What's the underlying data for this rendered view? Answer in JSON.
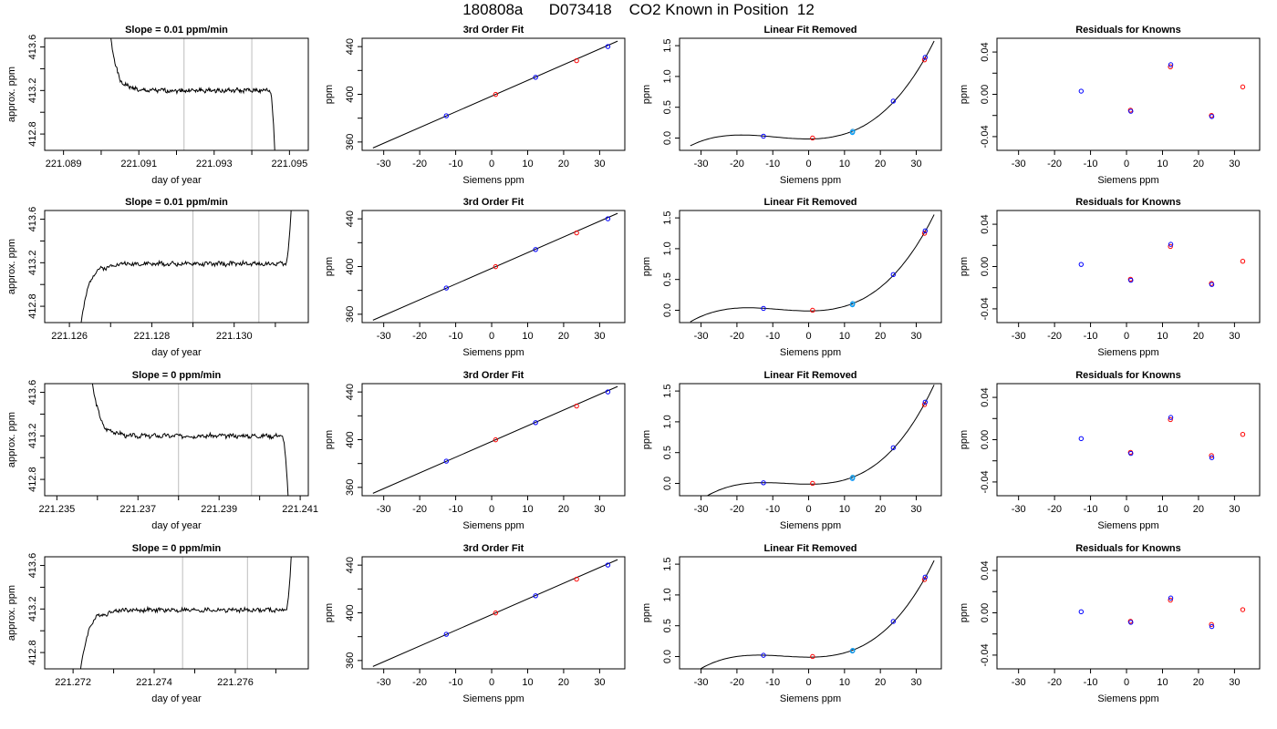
{
  "page_title": "180808a      D073418    CO2 Known in Position  12",
  "colors": {
    "line": "#000000",
    "guide": "#bdbdbd",
    "point_red": "#ff0000",
    "point_blue": "#0000ff",
    "point_cyan": "#00b4ff"
  },
  "chart_data": [
    {
      "type": "line",
      "title": "Slope =  0.01  ppm/min",
      "xlabel": "day of year",
      "ylabel": "approx. ppm",
      "xlim": [
        221.0885,
        221.0955
      ],
      "ylim": [
        412.65,
        413.68
      ],
      "xticks": [
        221.089,
        221.09,
        221.091,
        221.092,
        221.093,
        221.094,
        221.095
      ],
      "xtick_labels": [
        "221.089",
        "",
        "221.091",
        "",
        "221.093",
        "",
        "221.095"
      ],
      "yticks": [
        412.8,
        413.0,
        413.2,
        413.4,
        413.6
      ],
      "ytick_labels": [
        "412.8",
        "",
        "413.2",
        "",
        "413.6"
      ],
      "vlines": [
        221.0922,
        221.094
      ],
      "x_start": 221.0901,
      "x_end": 221.0947,
      "plateau": 413.2,
      "ramp": "down",
      "noise_seed": 1
    },
    {
      "type": "scatter",
      "title": "3rd Order Fit",
      "xlabel": "Siemens ppm",
      "ylabel": "ppm",
      "xlim": [
        -36,
        37
      ],
      "ylim": [
        353,
        447
      ],
      "xticks": [
        -30,
        -20,
        -10,
        0,
        10,
        20,
        30
      ],
      "xtick_labels": [
        "-30",
        "-20",
        "-10",
        "0",
        "10",
        "20",
        "30"
      ],
      "yticks": [
        360,
        380,
        400,
        420,
        440
      ],
      "ytick_labels": [
        "360",
        "",
        "400",
        "",
        "440"
      ],
      "fit_line": {
        "x": [
          -33,
          35
        ],
        "y": [
          355.0,
          444.6
        ]
      },
      "points": [
        {
          "x": -12.6,
          "y": 382.0
        },
        {
          "x": 1.1,
          "y": 399.9
        },
        {
          "x": 12.2,
          "y": 414.3
        },
        {
          "x": 23.6,
          "y": 428.2
        },
        {
          "x": 32.3,
          "y": 440.1
        }
      ]
    },
    {
      "type": "scatter",
      "title": "Linear Fit Removed",
      "xlabel": "Siemens ppm",
      "ylabel": "ppm",
      "xlim": [
        -36,
        37
      ],
      "ylim": [
        -0.2,
        1.62
      ],
      "xticks": [
        -30,
        -20,
        -10,
        0,
        10,
        20,
        30
      ],
      "xtick_labels": [
        "-30",
        "-20",
        "-10",
        "0",
        "10",
        "20",
        "30"
      ],
      "yticks": [
        0.0,
        0.5,
        1.0,
        1.5
      ],
      "ytick_labels": [
        "0.0",
        "0.5",
        "1.0",
        "1.5"
      ],
      "fit_curve_x": [
        -33,
        35
      ],
      "points": [
        {
          "x": -12.6,
          "y": 0.03
        },
        {
          "x": 1.1,
          "y": 0.0
        },
        {
          "x": 12.2,
          "y": 0.09
        },
        {
          "x": 12.3,
          "y": 0.11
        },
        {
          "x": 23.6,
          "y": 0.6
        },
        {
          "x": 32.3,
          "y": 1.27
        },
        {
          "x": 32.5,
          "y": 1.31
        }
      ]
    },
    {
      "type": "scatter",
      "title": "Residuals for Knowns",
      "xlabel": "Siemens ppm",
      "ylabel": "ppm",
      "xlim": [
        -36,
        37
      ],
      "ylim": [
        -0.053,
        0.053
      ],
      "xticks": [
        -30,
        -20,
        -10,
        0,
        10,
        20,
        30
      ],
      "xtick_labels": [
        "-30",
        "-20",
        "-10",
        "0",
        "10",
        "20",
        "30"
      ],
      "yticks": [
        -0.04,
        -0.02,
        0.0,
        0.02,
        0.04
      ],
      "ytick_labels": [
        "-0.04",
        "",
        "0.00",
        "",
        "0.04"
      ],
      "points": [
        {
          "x": -12.6,
          "y": 0.003
        },
        {
          "x": 1.1,
          "y": -0.015
        },
        {
          "x": 1.2,
          "y": -0.016
        },
        {
          "x": 12.2,
          "y": 0.026
        },
        {
          "x": 12.3,
          "y": 0.028
        },
        {
          "x": 23.6,
          "y": -0.02
        },
        {
          "x": 23.7,
          "y": -0.021
        },
        {
          "x": 32.3,
          "y": 0.007
        }
      ]
    },
    {
      "type": "line",
      "title": "Slope =  0.01  ppm/min",
      "xlabel": "day of year",
      "ylabel": "approx. ppm",
      "xlim": [
        221.1254,
        221.1318
      ],
      "ylim": [
        412.65,
        413.68
      ],
      "xticks": [
        221.126,
        221.127,
        221.128,
        221.129,
        221.13,
        221.131
      ],
      "xtick_labels": [
        "221.126",
        "",
        "221.128",
        "",
        "221.130",
        ""
      ],
      "yticks": [
        412.8,
        413.0,
        413.2,
        413.4,
        413.6
      ],
      "ytick_labels": [
        "412.8",
        "",
        "413.2",
        "",
        "413.6"
      ],
      "vlines": [
        221.129,
        221.1306
      ],
      "x_start": 221.1261,
      "x_end": 221.1315,
      "plateau": 413.19,
      "ramp": "up",
      "noise_seed": 2
    },
    {
      "type": "scatter",
      "title": "3rd Order Fit",
      "xlabel": "Siemens ppm",
      "ylabel": "ppm",
      "xlim": [
        -36,
        37
      ],
      "ylim": [
        353,
        447
      ],
      "xticks": [
        -30,
        -20,
        -10,
        0,
        10,
        20,
        30
      ],
      "xtick_labels": [
        "-30",
        "-20",
        "-10",
        "0",
        "10",
        "20",
        "30"
      ],
      "yticks": [
        360,
        380,
        400,
        420,
        440
      ],
      "ytick_labels": [
        "360",
        "",
        "400",
        "",
        "440"
      ],
      "fit_line": {
        "x": [
          -33,
          35
        ],
        "y": [
          355.0,
          444.6
        ]
      },
      "points": [
        {
          "x": -12.6,
          "y": 382.0
        },
        {
          "x": 1.1,
          "y": 399.9
        },
        {
          "x": 12.2,
          "y": 414.3
        },
        {
          "x": 23.6,
          "y": 428.2
        },
        {
          "x": 32.3,
          "y": 440.1
        }
      ]
    },
    {
      "type": "scatter",
      "title": "Linear Fit Removed",
      "xlabel": "Siemens ppm",
      "ylabel": "ppm",
      "xlim": [
        -36,
        37
      ],
      "ylim": [
        -0.2,
        1.62
      ],
      "xticks": [
        -30,
        -20,
        -10,
        0,
        10,
        20,
        30
      ],
      "xtick_labels": [
        "-30",
        "-20",
        "-10",
        "0",
        "10",
        "20",
        "30"
      ],
      "yticks": [
        0.0,
        0.5,
        1.0,
        1.5
      ],
      "ytick_labels": [
        "0.0",
        "0.5",
        "1.0",
        "1.5"
      ],
      "fit_curve_x": [
        -33,
        35
      ],
      "points": [
        {
          "x": -12.6,
          "y": 0.03
        },
        {
          "x": 1.1,
          "y": 0.0
        },
        {
          "x": 12.2,
          "y": 0.09
        },
        {
          "x": 12.3,
          "y": 0.11
        },
        {
          "x": 23.6,
          "y": 0.58
        },
        {
          "x": 32.3,
          "y": 1.25
        },
        {
          "x": 32.5,
          "y": 1.29
        }
      ]
    },
    {
      "type": "scatter",
      "title": "Residuals for Knowns",
      "xlabel": "Siemens ppm",
      "ylabel": "ppm",
      "xlim": [
        -36,
        37
      ],
      "ylim": [
        -0.053,
        0.053
      ],
      "xticks": [
        -30,
        -20,
        -10,
        0,
        10,
        20,
        30
      ],
      "xtick_labels": [
        "-30",
        "-20",
        "-10",
        "0",
        "10",
        "20",
        "30"
      ],
      "yticks": [
        -0.04,
        -0.02,
        0.0,
        0.02,
        0.04
      ],
      "ytick_labels": [
        "-0.04",
        "",
        "0.00",
        "",
        "0.04"
      ],
      "points": [
        {
          "x": -12.6,
          "y": 0.002
        },
        {
          "x": 1.1,
          "y": -0.012
        },
        {
          "x": 1.2,
          "y": -0.013
        },
        {
          "x": 12.2,
          "y": 0.019
        },
        {
          "x": 12.3,
          "y": 0.021
        },
        {
          "x": 23.6,
          "y": -0.016
        },
        {
          "x": 23.7,
          "y": -0.017
        },
        {
          "x": 32.3,
          "y": 0.005
        }
      ]
    },
    {
      "type": "line",
      "title": "Slope =  0  ppm/min",
      "xlabel": "day of year",
      "ylabel": "approx. ppm",
      "xlim": [
        221.2347,
        221.2412
      ],
      "ylim": [
        412.65,
        413.68
      ],
      "xticks": [
        221.235,
        221.236,
        221.237,
        221.238,
        221.239,
        221.24,
        221.241
      ],
      "xtick_labels": [
        "221.235",
        "",
        "221.237",
        "",
        "221.239",
        "",
        "221.241"
      ],
      "yticks": [
        412.8,
        413.0,
        413.2,
        413.4,
        413.6
      ],
      "ytick_labels": [
        "412.8",
        "",
        "413.2",
        "",
        "413.6"
      ],
      "vlines": [
        221.238,
        221.2398
      ],
      "x_start": 221.2357,
      "x_end": 221.2408,
      "plateau": 413.2,
      "ramp": "down",
      "noise_seed": 3
    },
    {
      "type": "scatter",
      "title": "3rd Order Fit",
      "xlabel": "Siemens ppm",
      "ylabel": "ppm",
      "xlim": [
        -36,
        37
      ],
      "ylim": [
        353,
        447
      ],
      "xticks": [
        -30,
        -20,
        -10,
        0,
        10,
        20,
        30
      ],
      "xtick_labels": [
        "-30",
        "-20",
        "-10",
        "0",
        "10",
        "20",
        "30"
      ],
      "yticks": [
        360,
        380,
        400,
        420,
        440
      ],
      "ytick_labels": [
        "360",
        "",
        "400",
        "",
        "440"
      ],
      "fit_line": {
        "x": [
          -33,
          35
        ],
        "y": [
          355.0,
          444.6
        ]
      },
      "points": [
        {
          "x": -12.6,
          "y": 382.0
        },
        {
          "x": 1.1,
          "y": 399.9
        },
        {
          "x": 12.2,
          "y": 414.3
        },
        {
          "x": 23.6,
          "y": 428.2
        },
        {
          "x": 32.3,
          "y": 440.1
        }
      ]
    },
    {
      "type": "scatter",
      "title": "Linear Fit Removed",
      "xlabel": "Siemens ppm",
      "ylabel": "ppm",
      "xlim": [
        -36,
        37
      ],
      "ylim": [
        -0.2,
        1.62
      ],
      "xticks": [
        -30,
        -20,
        -10,
        0,
        10,
        20,
        30
      ],
      "xtick_labels": [
        "-30",
        "-20",
        "-10",
        "0",
        "10",
        "20",
        "30"
      ],
      "yticks": [
        0.0,
        0.5,
        1.0,
        1.5
      ],
      "ytick_labels": [
        "0.0",
        "0.5",
        "1.0",
        "1.5"
      ],
      "fit_curve_x": [
        -33,
        35
      ],
      "points": [
        {
          "x": -12.6,
          "y": 0.01
        },
        {
          "x": 1.1,
          "y": 0.0
        },
        {
          "x": 12.2,
          "y": 0.08
        },
        {
          "x": 12.3,
          "y": 0.1
        },
        {
          "x": 23.6,
          "y": 0.58
        },
        {
          "x": 32.3,
          "y": 1.28
        },
        {
          "x": 32.5,
          "y": 1.32
        }
      ]
    },
    {
      "type": "scatter",
      "title": "Residuals for Knowns",
      "xlabel": "Siemens ppm",
      "ylabel": "ppm",
      "xlim": [
        -36,
        37
      ],
      "ylim": [
        -0.053,
        0.053
      ],
      "xticks": [
        -30,
        -20,
        -10,
        0,
        10,
        20,
        30
      ],
      "xtick_labels": [
        "-30",
        "-20",
        "-10",
        "0",
        "10",
        "20",
        "30"
      ],
      "yticks": [
        -0.04,
        -0.02,
        0.0,
        0.02,
        0.04
      ],
      "ytick_labels": [
        "-0.04",
        "",
        "0.00",
        "",
        "0.04"
      ],
      "points": [
        {
          "x": -12.6,
          "y": 0.001
        },
        {
          "x": 1.1,
          "y": -0.012
        },
        {
          "x": 1.2,
          "y": -0.013
        },
        {
          "x": 12.2,
          "y": 0.019
        },
        {
          "x": 12.3,
          "y": 0.021
        },
        {
          "x": 23.6,
          "y": -0.015
        },
        {
          "x": 23.7,
          "y": -0.017
        },
        {
          "x": 32.3,
          "y": 0.005
        }
      ]
    },
    {
      "type": "line",
      "title": "Slope =  0  ppm/min",
      "xlabel": "day of year",
      "ylabel": "approx. ppm",
      "xlim": [
        221.2713,
        221.2778
      ],
      "ylim": [
        412.65,
        413.68
      ],
      "xticks": [
        221.272,
        221.273,
        221.274,
        221.275,
        221.276,
        221.277
      ],
      "xtick_labels": [
        "221.272",
        "",
        "221.274",
        "",
        "221.276",
        ""
      ],
      "yticks": [
        412.8,
        413.0,
        413.2,
        413.4,
        413.6
      ],
      "ytick_labels": [
        "412.8",
        "",
        "413.2",
        "",
        "413.6"
      ],
      "vlines": [
        221.2747,
        221.2763
      ],
      "x_start": 221.272,
      "x_end": 221.2775,
      "plateau": 413.19,
      "ramp": "up",
      "noise_seed": 4
    },
    {
      "type": "scatter",
      "title": "3rd Order Fit",
      "xlabel": "Siemens ppm",
      "ylabel": "ppm",
      "xlim": [
        -36,
        37
      ],
      "ylim": [
        353,
        447
      ],
      "xticks": [
        -30,
        -20,
        -10,
        0,
        10,
        20,
        30
      ],
      "xtick_labels": [
        "-30",
        "-20",
        "-10",
        "0",
        "10",
        "20",
        "30"
      ],
      "yticks": [
        360,
        380,
        400,
        420,
        440
      ],
      "ytick_labels": [
        "360",
        "",
        "400",
        "",
        "440"
      ],
      "fit_line": {
        "x": [
          -33,
          35
        ],
        "y": [
          355.0,
          444.6
        ]
      },
      "points": [
        {
          "x": -12.6,
          "y": 382.0
        },
        {
          "x": 1.1,
          "y": 399.9
        },
        {
          "x": 12.2,
          "y": 414.3
        },
        {
          "x": 23.6,
          "y": 428.2
        },
        {
          "x": 32.3,
          "y": 440.1
        }
      ]
    },
    {
      "type": "scatter",
      "title": "Linear Fit Removed",
      "xlabel": "Siemens ppm",
      "ylabel": "ppm",
      "xlim": [
        -36,
        37
      ],
      "ylim": [
        -0.2,
        1.62
      ],
      "xticks": [
        -30,
        -20,
        -10,
        0,
        10,
        20,
        30
      ],
      "xtick_labels": [
        "-30",
        "-20",
        "-10",
        "0",
        "10",
        "20",
        "30"
      ],
      "yticks": [
        0.0,
        0.5,
        1.0,
        1.5
      ],
      "ytick_labels": [
        "0.0",
        "0.5",
        "1.0",
        "1.5"
      ],
      "fit_curve_x": [
        -33,
        35
      ],
      "points": [
        {
          "x": -12.6,
          "y": 0.02
        },
        {
          "x": 1.1,
          "y": 0.0
        },
        {
          "x": 12.2,
          "y": 0.09
        },
        {
          "x": 12.3,
          "y": 0.1
        },
        {
          "x": 23.6,
          "y": 0.57
        },
        {
          "x": 32.3,
          "y": 1.25
        },
        {
          "x": 32.5,
          "y": 1.29
        }
      ]
    },
    {
      "type": "scatter",
      "title": "Residuals for Knowns",
      "xlabel": "Siemens ppm",
      "ylabel": "ppm",
      "xlim": [
        -36,
        37
      ],
      "ylim": [
        -0.053,
        0.053
      ],
      "xticks": [
        -30,
        -20,
        -10,
        0,
        10,
        20,
        30
      ],
      "xtick_labels": [
        "-30",
        "-20",
        "-10",
        "0",
        "10",
        "20",
        "30"
      ],
      "yticks": [
        -0.04,
        -0.02,
        0.0,
        0.02,
        0.04
      ],
      "ytick_labels": [
        "-0.04",
        "",
        "0.00",
        "",
        "0.04"
      ],
      "points": [
        {
          "x": -12.6,
          "y": 0.001
        },
        {
          "x": 1.1,
          "y": -0.008
        },
        {
          "x": 1.2,
          "y": -0.009
        },
        {
          "x": 12.2,
          "y": 0.012
        },
        {
          "x": 12.3,
          "y": 0.014
        },
        {
          "x": 23.6,
          "y": -0.011
        },
        {
          "x": 23.7,
          "y": -0.013
        },
        {
          "x": 32.3,
          "y": 0.003
        }
      ]
    }
  ]
}
